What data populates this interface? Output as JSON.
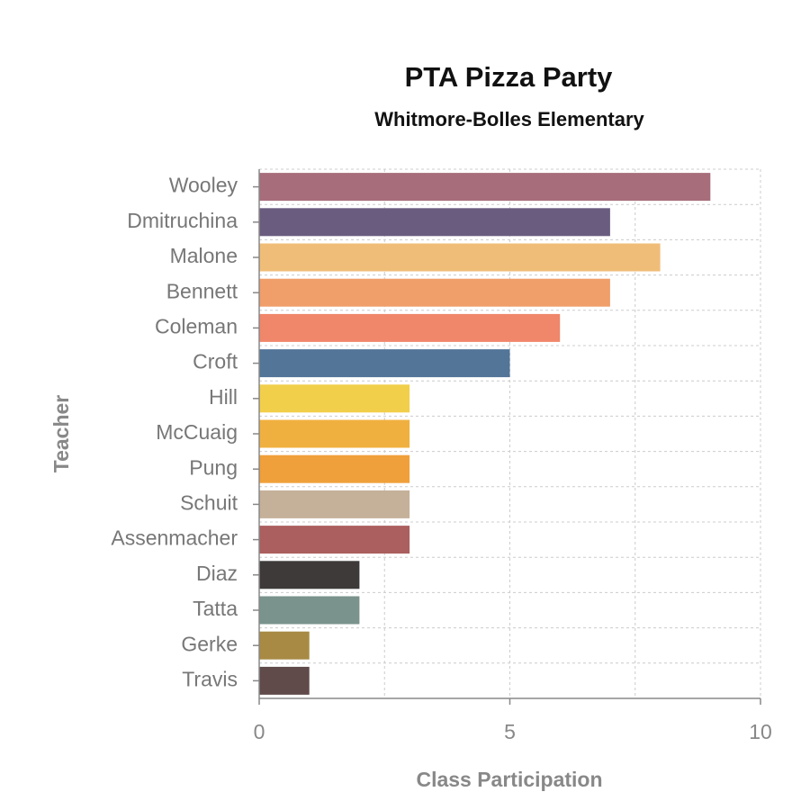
{
  "chart_data": {
    "type": "barh",
    "title": "PTA Pizza Party",
    "subtitle": "Whitmore-Bolles Elementary",
    "x_label": "Class Participation",
    "y_label": "Teacher",
    "categories": [
      "Wooley",
      "Dmitruchina",
      "Malone",
      "Bennett",
      "Coleman",
      "Croft",
      "Hill",
      "McCuaig",
      "Pung",
      "Schuit",
      "Assenmacher",
      "Diaz",
      "Tatta",
      "Gerke",
      "Travis"
    ],
    "values": [
      9,
      7,
      8,
      7,
      6,
      5,
      3,
      3,
      3,
      3,
      3,
      2,
      2,
      1,
      1
    ],
    "colors": [
      "#a76d7a",
      "#6a5c7f",
      "#f0bd78",
      "#f09e6a",
      "#f0866a",
      "#527598",
      "#f2cf4a",
      "#f0b03f",
      "#f0a03a",
      "#c5b09a",
      "#ab5f5e",
      "#3e3a3a",
      "#7a938c",
      "#a88a45",
      "#604a4a"
    ],
    "xlim": [
      0,
      10
    ],
    "xticks": [
      0,
      5,
      10
    ],
    "minor_xticks": [
      2.5,
      7.5
    ],
    "grid": true
  }
}
